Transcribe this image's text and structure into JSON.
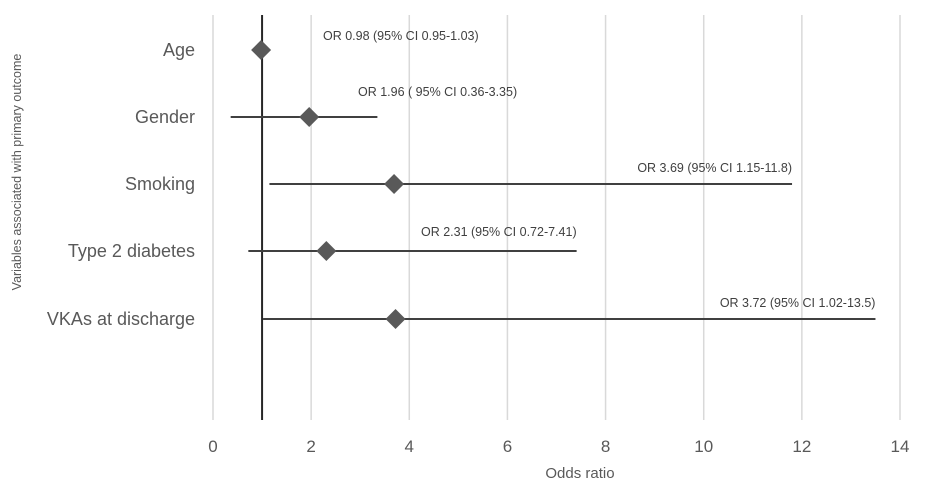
{
  "chart_data": {
    "type": "scatter",
    "subtype": "forest-plot",
    "xlabel": "Odds ratio",
    "ylabel": "Variables associated with primary outcome",
    "xlim": [
      0,
      14
    ],
    "xticks": [
      0,
      2,
      4,
      6,
      8,
      10,
      12,
      14
    ],
    "reference_line": 1,
    "grid": "vertical",
    "rows": [
      {
        "label": "Age",
        "or": 0.98,
        "ci_low": 0.95,
        "ci_high": 1.03,
        "annotation": "OR 0.98 (95% CI 0.95-1.03)"
      },
      {
        "label": "Gender",
        "or": 1.96,
        "ci_low": 0.36,
        "ci_high": 3.35,
        "annotation": "OR 1.96 ( 95% CI 0.36-3.35)"
      },
      {
        "label": "Smoking",
        "or": 3.69,
        "ci_low": 1.15,
        "ci_high": 11.8,
        "annotation": "OR 3.69 (95% CI 1.15-11.8)"
      },
      {
        "label": "Type 2 diabetes",
        "or": 2.31,
        "ci_low": 0.72,
        "ci_high": 7.41,
        "annotation": "OR 2.31 (95% CI 0.72-7.41)"
      },
      {
        "label": "VKAs at discharge",
        "or": 3.72,
        "ci_low": 1.02,
        "ci_high": 13.5,
        "annotation": "OR 3.72 (95% CI 1.02-13.5)"
      }
    ],
    "colors": {
      "marker": "#595959",
      "line": "#404040",
      "grid": "#d9d9d9",
      "text": "#595959"
    }
  }
}
